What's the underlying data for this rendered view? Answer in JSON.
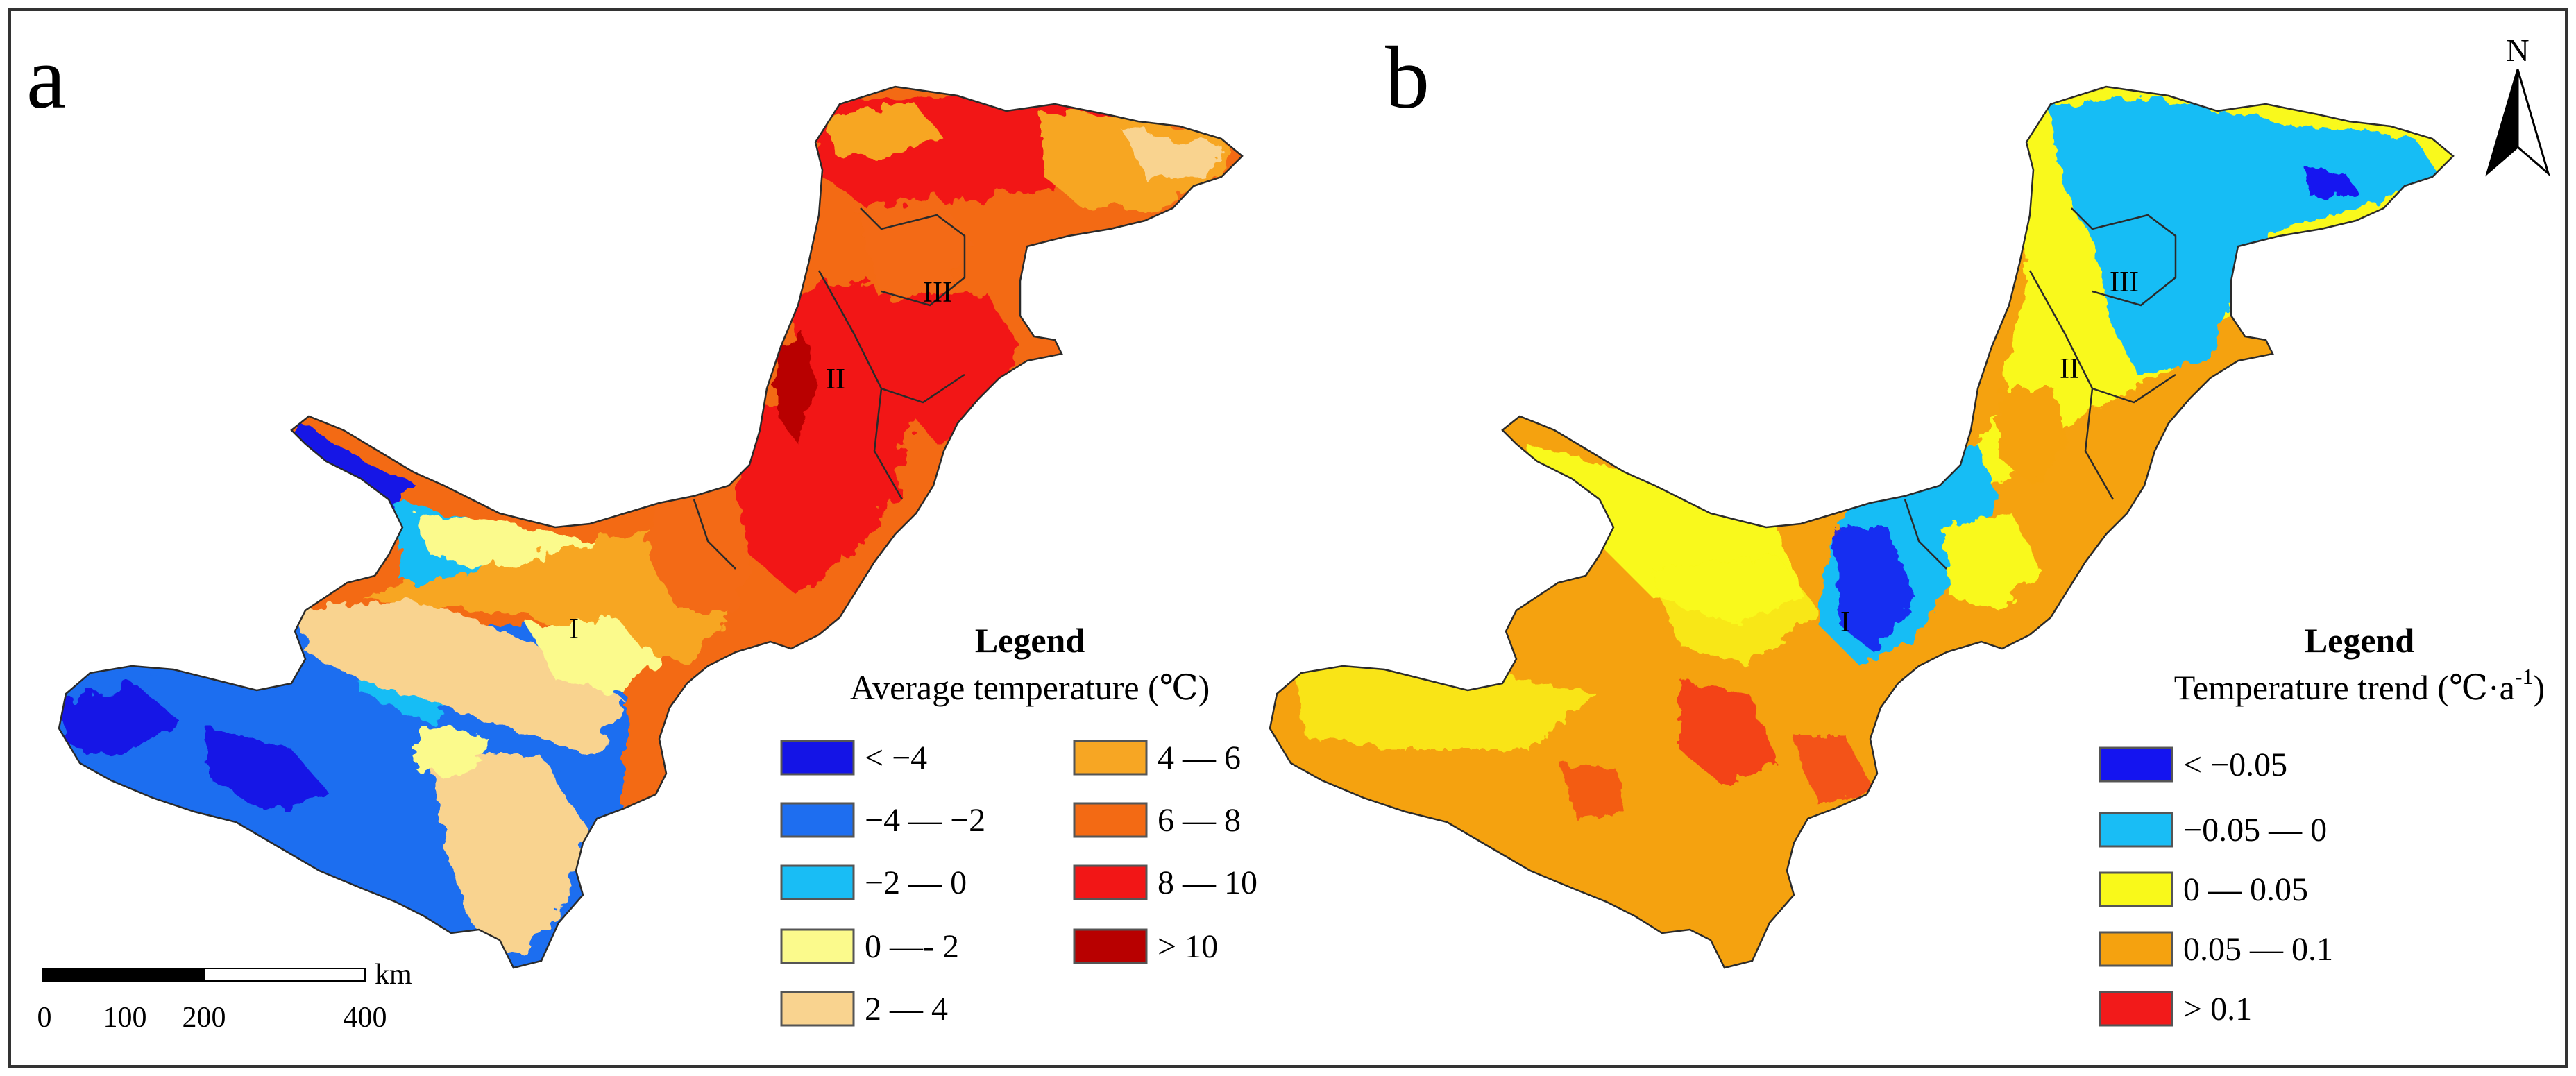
{
  "panel_a": {
    "label": "a",
    "regions": [
      "I",
      "II",
      "III"
    ],
    "legend": {
      "title": "Legend",
      "subtitle": "Average temperature (℃)",
      "entries": [
        {
          "label": "< −4",
          "color": "#1414e6"
        },
        {
          "label": "−4 — −2",
          "color": "#1e6ef0"
        },
        {
          "label": "−2 — 0",
          "color": "#19bdf5"
        },
        {
          "label": "0 —- 2",
          "color": "#fbfa8c"
        },
        {
          "label": "2 — 4",
          "color": "#f9d38f"
        },
        {
          "label": "4 — 6",
          "color": "#f7a623"
        },
        {
          "label": "6 — 8",
          "color": "#f36a14"
        },
        {
          "label": "8 — 10",
          "color": "#f21616"
        },
        {
          "label": "> 10",
          "color": "#b80000"
        }
      ]
    },
    "scale_bar": {
      "unit": "km",
      "ticks": [
        "0",
        "100",
        "200",
        "400"
      ]
    }
  },
  "panel_b": {
    "label": "b",
    "regions": [
      "I",
      "II",
      "III"
    ],
    "north": "N",
    "legend": {
      "title": "Legend",
      "subtitle": "Temperature trend (℃·a",
      "subtitle_sup": "-1",
      "subtitle_end": ")",
      "entries": [
        {
          "label": "< −0.05",
          "color": "#1414f0"
        },
        {
          "label": "−0.05 — 0",
          "color": "#19bdf5"
        },
        {
          "label": "0 — 0.05",
          "color": "#f9f91a"
        },
        {
          "label": "0.05 — 0.1",
          "color": "#f5a20f"
        },
        {
          "label": "> 0.1",
          "color": "#f21a1a"
        }
      ]
    }
  }
}
